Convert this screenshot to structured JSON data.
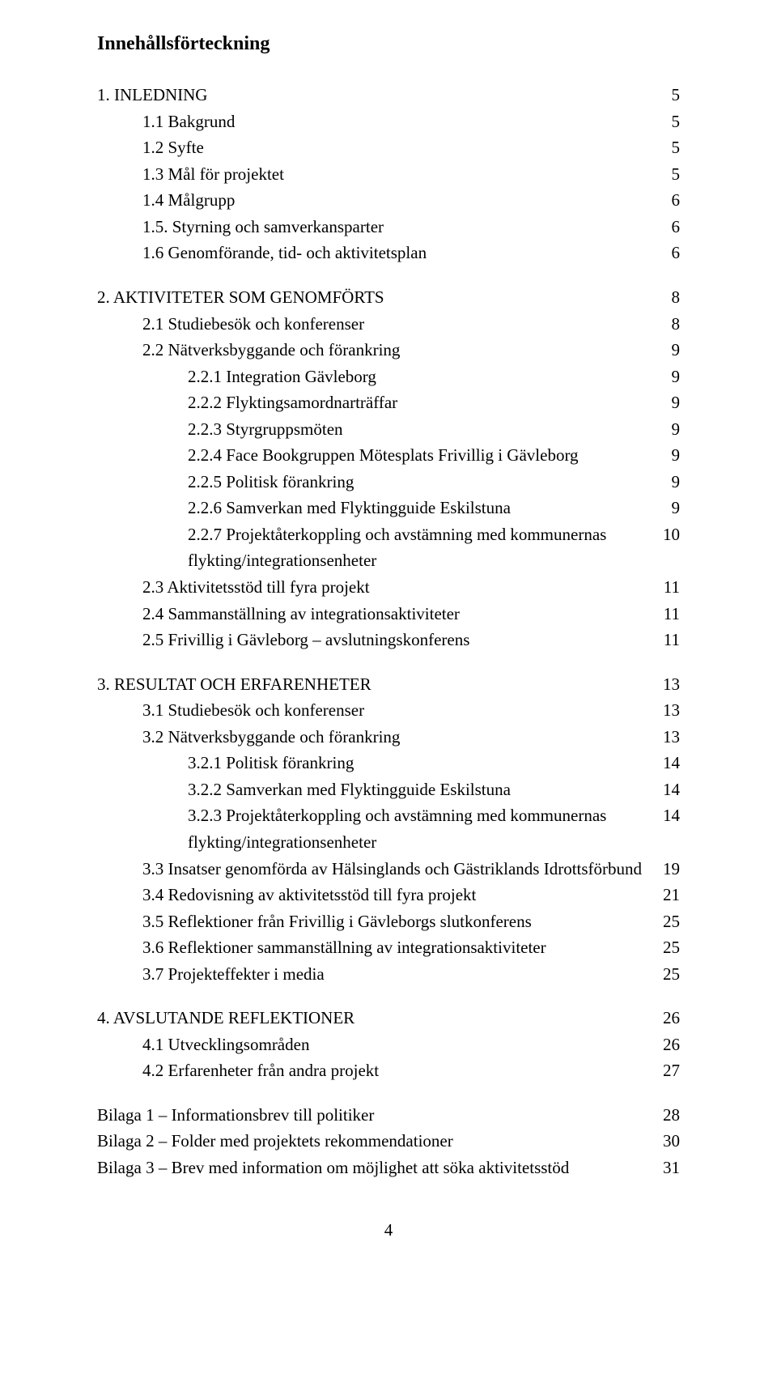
{
  "title": "Innehållsförteckning",
  "page_number": "4",
  "colors": {
    "text": "#000000",
    "background": "#ffffff"
  },
  "typography": {
    "body_fontsize_pt": 16,
    "title_fontsize_pt": 18,
    "font_family": "Times New Roman"
  },
  "entries": [
    {
      "level": 0,
      "label": "1. INLEDNING",
      "page": "5",
      "gap_before": false
    },
    {
      "level": 1,
      "label": "1.1 Bakgrund",
      "page": "5"
    },
    {
      "level": 1,
      "label": "1.2 Syfte",
      "page": "5"
    },
    {
      "level": 1,
      "label": "1.3 Mål för projektet",
      "page": "5"
    },
    {
      "level": 1,
      "label": "1.4 Målgrupp",
      "page": "6"
    },
    {
      "level": 1,
      "label": "1.5. Styrning och samverkansparter",
      "page": "6"
    },
    {
      "level": 1,
      "label": "1.6 Genomförande, tid- och aktivitetsplan",
      "page": "6"
    },
    {
      "level": 0,
      "label": "2. AKTIVITETER SOM GENOMFÖRTS",
      "page": "8",
      "gap_before": true
    },
    {
      "level": 1,
      "label": "2.1 Studiebesök och konferenser",
      "page": "8"
    },
    {
      "level": 1,
      "label": "2.2 Nätverksbyggande och förankring",
      "page": "9"
    },
    {
      "level": 2,
      "label": "2.2.1 Integration Gävleborg",
      "page": "9"
    },
    {
      "level": 2,
      "label": "2.2.2 Flyktingsamordnarträffar",
      "page": "9"
    },
    {
      "level": 2,
      "label": "2.2.3 Styrgruppsmöten",
      "page": "9"
    },
    {
      "level": 2,
      "label": "2.2.4 Face Bookgruppen Mötesplats Frivillig i Gävleborg",
      "page": "9"
    },
    {
      "level": 2,
      "label": "2.2.5 Politisk förankring",
      "page": "9"
    },
    {
      "level": 2,
      "label": "2.2.6 Samverkan med Flyktingguide Eskilstuna",
      "page": "9"
    },
    {
      "level": 2,
      "label": "2.2.7 Projektåterkoppling och avstämning med kommunernas flykting/integrationsenheter",
      "page": "10"
    },
    {
      "level": 1,
      "label": "2.3 Aktivitetsstöd till fyra projekt",
      "page": "11"
    },
    {
      "level": 1,
      "label": "2.4 Sammanställning av integrationsaktiviteter",
      "page": "11"
    },
    {
      "level": 1,
      "label": "2.5 Frivillig i Gävleborg – avslutningskonferens",
      "page": "11"
    },
    {
      "level": 0,
      "label": "3. RESULTAT OCH ERFARENHETER",
      "page": "13",
      "gap_before": true
    },
    {
      "level": 1,
      "label": "3.1 Studiebesök och konferenser",
      "page": "13"
    },
    {
      "level": 1,
      "label": "3.2 Nätverksbyggande och förankring",
      "page": "13"
    },
    {
      "level": 2,
      "label": "3.2.1 Politisk förankring",
      "page": "14"
    },
    {
      "level": 2,
      "label": "3.2.2 Samverkan med Flyktingguide Eskilstuna",
      "page": "14"
    },
    {
      "level": 2,
      "label": "3.2.3 Projektåterkoppling och avstämning med kommunernas flykting/integrationsenheter",
      "page": "14"
    },
    {
      "level": 1,
      "label": "3.3 Insatser genomförda av Hälsinglands och Gästriklands Idrottsförbund",
      "page": "19"
    },
    {
      "level": 1,
      "label": "3.4 Redovisning av aktivitetsstöd till fyra projekt",
      "page": "21"
    },
    {
      "level": 1,
      "label": "3.5 Reflektioner från Frivillig i Gävleborgs slutkonferens",
      "page": "25"
    },
    {
      "level": 1,
      "label": "3.6 Reflektioner sammanställning av integrationsaktiviteter",
      "page": "25"
    },
    {
      "level": 1,
      "label": "3.7 Projekteffekter i media",
      "page": "25"
    },
    {
      "level": 0,
      "label": "4. AVSLUTANDE REFLEKTIONER",
      "page": "26",
      "gap_before": true
    },
    {
      "level": 1,
      "label": "4.1 Utvecklingsområden",
      "page": "26"
    },
    {
      "level": 1,
      "label": "4.2 Erfarenheter från andra projekt",
      "page": "27"
    },
    {
      "level": 0,
      "label": "Bilaga 1 – Informationsbrev till politiker",
      "page": "28",
      "gap_before": true
    },
    {
      "level": 0,
      "label": "Bilaga 2 – Folder med projektets rekommendationer",
      "page": "30"
    },
    {
      "level": 0,
      "label": "Bilaga 3 – Brev med information om möjlighet att söka aktivitetsstöd",
      "page": "31"
    }
  ]
}
